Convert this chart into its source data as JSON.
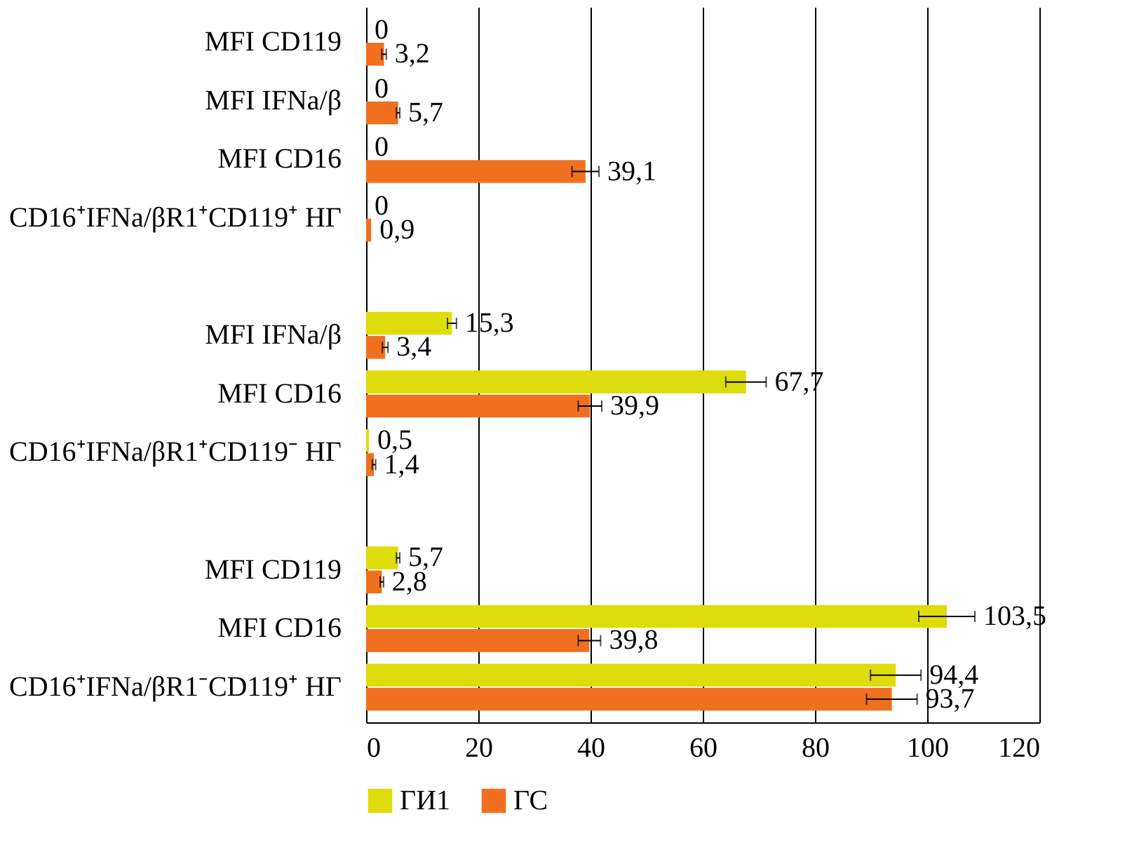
{
  "chart_data": {
    "type": "bar",
    "orientation": "horizontal",
    "categories": [
      "MFI CD119",
      "MFI IFNa/β",
      "MFI CD16",
      "CD16⁺IFNa/βR1⁺CD119⁺ НГ",
      null,
      "MFI IFNa/β",
      "MFI CD16",
      "CD16⁺IFNa/βR1⁺CD119⁻ НГ",
      null,
      "MFI CD119",
      "MFI CD16",
      "CD16⁺IFNa/βR1⁻CD119⁺ НГ"
    ],
    "series": [
      {
        "name": "ГИ1",
        "color": "#dedc0a",
        "values": [
          0,
          0,
          0,
          0,
          null,
          15.3,
          67.7,
          0.5,
          null,
          5.7,
          103.5,
          94.4
        ],
        "errors": [
          null,
          null,
          null,
          null,
          null,
          0.8,
          3.6,
          null,
          null,
          0.3,
          5,
          4.5
        ],
        "value_labels": [
          "0",
          "0",
          "0",
          "0",
          null,
          "15,3",
          "67,7",
          "0,5",
          null,
          "5,7",
          "103,5",
          "94,4"
        ]
      },
      {
        "name": "ГС",
        "color": "#f07020",
        "values": [
          3.2,
          5.7,
          39.1,
          0.9,
          null,
          3.4,
          39.9,
          1.4,
          null,
          2.8,
          39.8,
          93.7
        ],
        "errors": [
          0.4,
          0.3,
          2.4,
          null,
          null,
          0.5,
          2.1,
          0.3,
          null,
          0.3,
          2,
          4.5
        ],
        "value_labels": [
          "3,2",
          "5,7",
          "39,1",
          "0,9",
          null,
          "3,4",
          "39,9",
          "1,4",
          null,
          "2,8",
          "39,8",
          "93,7"
        ]
      }
    ],
    "xlim": [
      0,
      120
    ],
    "xticks": [
      0,
      20,
      40,
      60,
      80,
      100,
      120
    ],
    "grid": "x",
    "legend": "bottom"
  }
}
